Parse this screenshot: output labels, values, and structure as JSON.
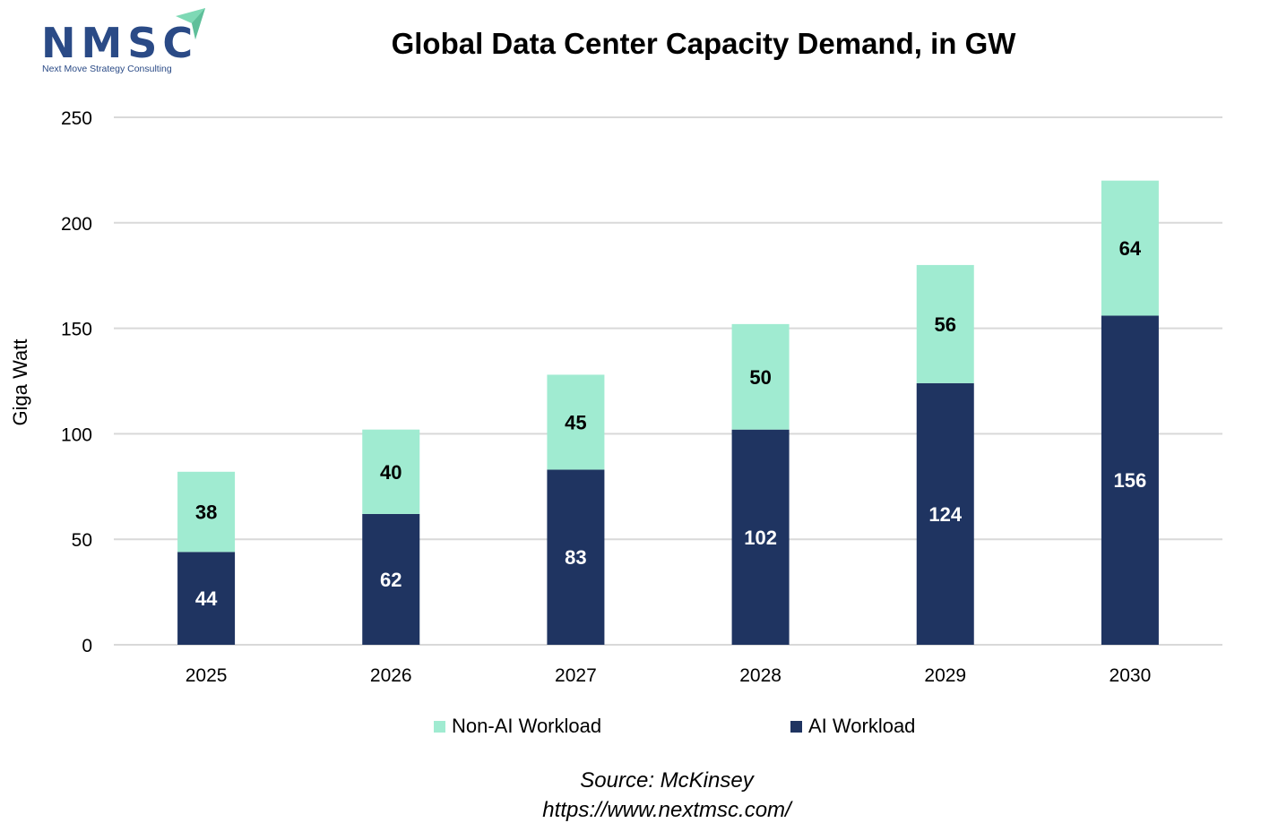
{
  "logo": {
    "name": "NMSC",
    "tagline": "Next Move Strategy Consulting"
  },
  "colors": {
    "ai": "#1f3461",
    "non_ai": "#a0ebd1",
    "grid": "#d9d9d9",
    "brand": "#2a4a86",
    "brand_accent": "#7ed9b5"
  },
  "chart_data": {
    "type": "bar",
    "stacked": true,
    "title": "Global Data Center Capacity Demand, in GW",
    "xlabel": "",
    "ylabel": "Giga Watt",
    "ylim": [
      0,
      250
    ],
    "yticks": [
      0,
      50,
      100,
      150,
      200,
      250
    ],
    "grid": true,
    "categories": [
      "2025",
      "2026",
      "2027",
      "2028",
      "2029",
      "2030"
    ],
    "series": [
      {
        "name": "AI Workload",
        "values": [
          44,
          62,
          83,
          102,
          124,
          156
        ],
        "color": "#1f3461",
        "label_color": "#ffffff"
      },
      {
        "name": "Non-AI Workload",
        "values": [
          38,
          40,
          45,
          50,
          56,
          64
        ],
        "color": "#a0ebd1",
        "label_color": "#000000"
      }
    ],
    "legend": {
      "position": "bottom",
      "items": [
        "Non-AI Workload",
        "AI Workload"
      ]
    }
  },
  "footer": {
    "source": "Source: McKinsey",
    "url": "https://www.nextmsc.com/"
  }
}
